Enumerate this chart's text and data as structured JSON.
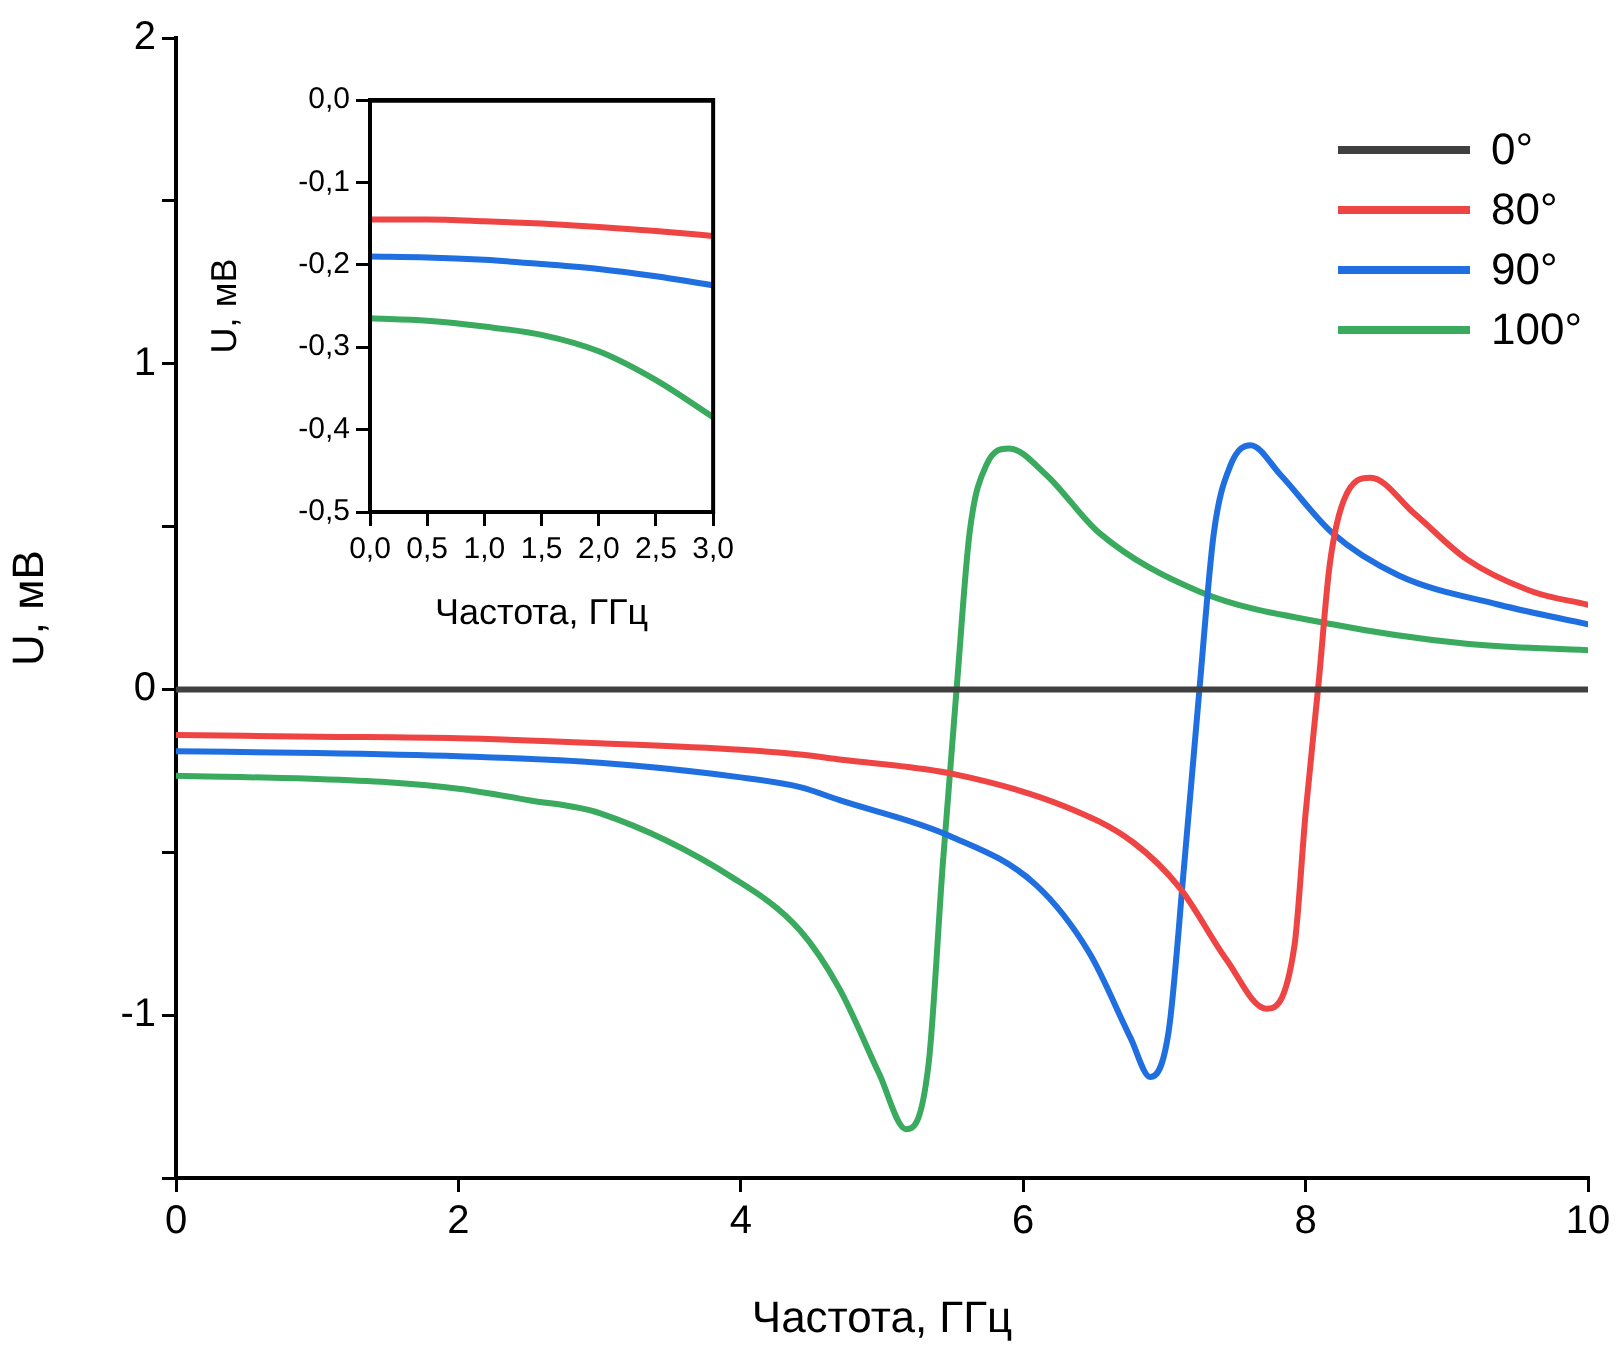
{
  "chart_data": [
    {
      "type": "line",
      "xlabel": "Частота, ГГц",
      "ylabel": "U, мВ",
      "xlim": [
        0,
        10
      ],
      "xticks": [
        0,
        2,
        4,
        6,
        8,
        10
      ],
      "ylim": [
        -1.5,
        2
      ],
      "yticks": [
        {
          "value": -1.5,
          "label": null
        },
        -1,
        {
          "value": -0.5,
          "label": null
        },
        0,
        {
          "value": 0.5,
          "label": null
        },
        1,
        {
          "value": 1.5,
          "label": null
        },
        2
      ],
      "grid": false,
      "legend": "top right",
      "line_style": "solid",
      "series": [
        {
          "name": "0°",
          "color": "#404040",
          "x": [
            0,
            10
          ],
          "values": [
            0,
            0
          ]
        },
        {
          "name": "80°",
          "color": "#ee4444",
          "x": [
            0,
            1,
            2,
            3,
            4,
            4.42,
            4.7,
            5.51,
            6.3,
            6.78,
            7.11,
            7.44,
            7.72,
            7.92,
            8,
            8.09,
            8.17,
            8.27,
            8.46,
            8.77,
            9.14,
            9.61,
            10
          ],
          "values": [
            -0.14,
            -0.145,
            -0.15,
            -0.165,
            -0.185,
            -0.2,
            -0.215,
            -0.26,
            -0.36,
            -0.47,
            -0.61,
            -0.83,
            -0.98,
            -0.79,
            -0.38,
            0.01,
            0.38,
            0.58,
            0.65,
            0.54,
            0.4,
            0.3,
            0.26
          ]
        },
        {
          "name": "90°",
          "color": "#1f6fe0",
          "x": [
            0,
            1,
            2,
            3,
            4,
            4.42,
            4.7,
            5.48,
            6.09,
            6.47,
            6.76,
            6.9,
            7.03,
            7.14,
            7.25,
            7.35,
            7.47,
            7.61,
            7.82,
            8.19,
            8.66,
            9.37,
            10
          ],
          "values": [
            -0.19,
            -0.195,
            -0.205,
            -0.225,
            -0.27,
            -0.3,
            -0.34,
            -0.45,
            -0.6,
            -0.81,
            -1.07,
            -1.19,
            -1.05,
            -0.54,
            0.01,
            0.48,
            0.69,
            0.75,
            0.66,
            0.48,
            0.35,
            0.26,
            0.2
          ]
        },
        {
          "name": "100°",
          "color": "#3aaa5f",
          "x": [
            0,
            1,
            1.5,
            2,
            2.5,
            3,
            3.95,
            4.42,
            4.7,
            4.98,
            5.17,
            5.33,
            5.43,
            5.53,
            5.62,
            5.74,
            5.9,
            6.16,
            6.54,
            7.25,
            8.19,
            9.14,
            10
          ],
          "values": [
            -0.265,
            -0.275,
            -0.285,
            -0.305,
            -0.34,
            -0.38,
            -0.58,
            -0.74,
            -0.92,
            -1.18,
            -1.35,
            -1.15,
            -0.54,
            0.01,
            0.48,
            0.69,
            0.74,
            0.66,
            0.48,
            0.3,
            0.2,
            0.14,
            0.12
          ]
        }
      ]
    },
    {
      "type": "line",
      "xlabel": "Частота, ГГц",
      "ylabel": "U, мВ",
      "xlim": [
        0,
        3
      ],
      "xticks": [
        {
          "value": 0,
          "label": "0,0"
        },
        {
          "value": 0.5,
          "label": "0,5"
        },
        {
          "value": 1,
          "label": "1,0"
        },
        {
          "value": 1.5,
          "label": "1,5"
        },
        {
          "value": 2,
          "label": "2,0"
        },
        {
          "value": 2.5,
          "label": "2,5"
        },
        {
          "value": 3,
          "label": "3,0"
        }
      ],
      "ylim": [
        -0.5,
        0
      ],
      "yticks": [
        {
          "value": -0.5,
          "label": "-0,5"
        },
        {
          "value": -0.4,
          "label": "-0,4"
        },
        {
          "value": -0.3,
          "label": "-0,3"
        },
        {
          "value": -0.2,
          "label": "-0,2"
        },
        {
          "value": -0.1,
          "label": "-0,1"
        },
        {
          "value": 0,
          "label": "0,0"
        }
      ],
      "grid": false,
      "line_style": "solid",
      "series": [
        {
          "color": "#404040",
          "x": [
            0,
            3
          ],
          "values": [
            0,
            0
          ]
        },
        {
          "color": "#ee4444",
          "x": [
            0,
            0.5,
            1,
            1.5,
            2,
            2.5,
            3
          ],
          "values": [
            -0.145,
            -0.145,
            -0.147,
            -0.15,
            -0.154,
            -0.159,
            -0.165
          ]
        },
        {
          "color": "#1f6fe0",
          "x": [
            0,
            0.5,
            1,
            1.5,
            2,
            2.5,
            3
          ],
          "values": [
            -0.19,
            -0.191,
            -0.194,
            -0.199,
            -0.205,
            -0.214,
            -0.225
          ]
        },
        {
          "color": "#3aaa5f",
          "x": [
            0,
            0.5,
            1,
            1.5,
            2,
            2.5,
            3
          ],
          "values": [
            -0.265,
            -0.268,
            -0.275,
            -0.285,
            -0.305,
            -0.34,
            -0.385
          ]
        }
      ]
    }
  ]
}
